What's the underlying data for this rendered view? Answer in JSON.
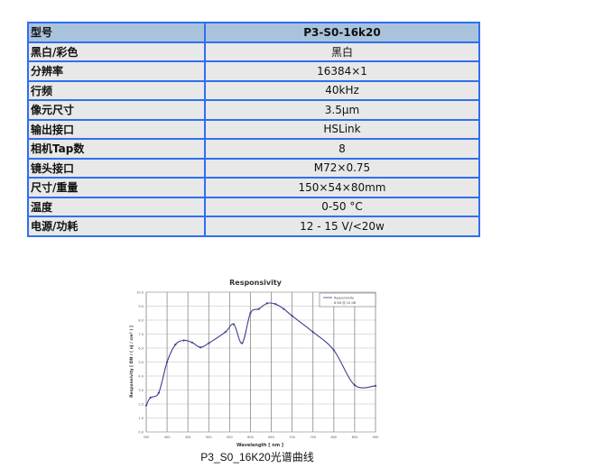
{
  "spec_table": {
    "rows": [
      {
        "key": "型号",
        "value": "P3-S0-16k20"
      },
      {
        "key": "黑白/彩色",
        "value": "黑白"
      },
      {
        "key": "分辨率",
        "value": "16384×1"
      },
      {
        "key": "行频",
        "value": "40kHz"
      },
      {
        "key": "像元尺寸",
        "value": "3.5μm"
      },
      {
        "key": "输出接口",
        "value": "HSLink"
      },
      {
        "key": "相机Tap数",
        "value": "8"
      },
      {
        "key": "镜头接口",
        "value": "M72×0.75"
      },
      {
        "key": "尺寸/重量",
        "value": "150×54×80mm"
      },
      {
        "key": "温度",
        "value": "0-50 °C"
      },
      {
        "key": "电源/功耗",
        "value": "12 - 15 V/<20w"
      }
    ]
  },
  "caption": "P3_S0_16K20光谱曲线",
  "chart_data": {
    "type": "line",
    "title": "Responsivity",
    "xlabel": "Wavelength [ nm ]",
    "ylabel": "Responsivity [ DN / ( nJ / cm² ) ]",
    "xlim": [
      350,
      900
    ],
    "ylim": [
      0,
      10
    ],
    "xticks": [
      350,
      400,
      450,
      500,
      550,
      600,
      650,
      700,
      750,
      800,
      850,
      900
    ],
    "yticks": [
      "0.0",
      "1.0",
      "2.0",
      "3.0",
      "4.0",
      "5.0",
      "6.0",
      "7.0",
      "8.0",
      "9.0",
      "10.0"
    ],
    "grid": true,
    "legend_position": "top-right",
    "color": "#3b3f8f",
    "series": [
      {
        "name": "Responsivity",
        "subtitle": "8 Bit @ 10 dB",
        "x": [
          350,
          360,
          380,
          400,
          420,
          440,
          460,
          480,
          500,
          540,
          560,
          580,
          600,
          620,
          640,
          660,
          680,
          700,
          750,
          800,
          850,
          900
        ],
        "y": [
          1.9,
          2.45,
          2.8,
          5.0,
          6.25,
          6.55,
          6.4,
          6.05,
          6.35,
          7.15,
          7.7,
          6.35,
          8.5,
          8.8,
          9.2,
          9.15,
          8.8,
          8.3,
          7.15,
          5.85,
          3.35,
          3.3
        ]
      }
    ]
  }
}
